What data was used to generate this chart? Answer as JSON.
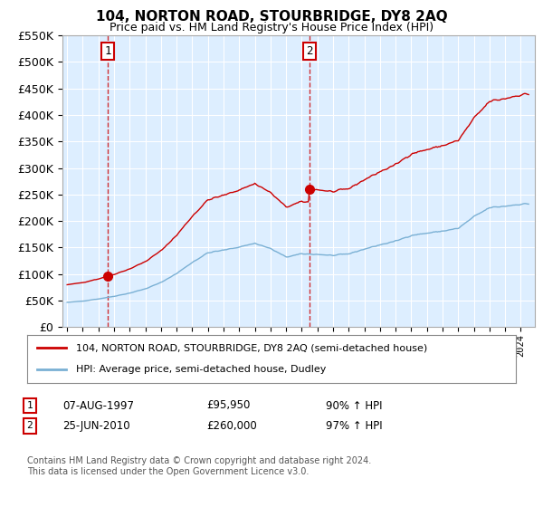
{
  "title": "104, NORTON ROAD, STOURBRIDGE, DY8 2AQ",
  "subtitle": "Price paid vs. HM Land Registry's House Price Index (HPI)",
  "legend_line1": "104, NORTON ROAD, STOURBRIDGE, DY8 2AQ (semi-detached house)",
  "legend_line2": "HPI: Average price, semi-detached house, Dudley",
  "footnote": "Contains HM Land Registry data © Crown copyright and database right 2024.\nThis data is licensed under the Open Government Licence v3.0.",
  "annotation1_date": "07-AUG-1997",
  "annotation1_price": "£95,950",
  "annotation1_hpi": "90% ↑ HPI",
  "annotation2_date": "25-JUN-2010",
  "annotation2_price": "£260,000",
  "annotation2_hpi": "97% ↑ HPI",
  "sale1_year": 1997.6,
  "sale1_price": 95950,
  "sale2_year": 2010.48,
  "sale2_price": 260000,
  "ylim": [
    0,
    550000
  ],
  "xlim_start": 1994.7,
  "xlim_end": 2024.9,
  "hpi_color": "#7ab0d4",
  "sale_color": "#cc0000",
  "plot_bg_color": "#ddeeff",
  "grid_color": "#ffffff",
  "background_color": "#ffffff"
}
